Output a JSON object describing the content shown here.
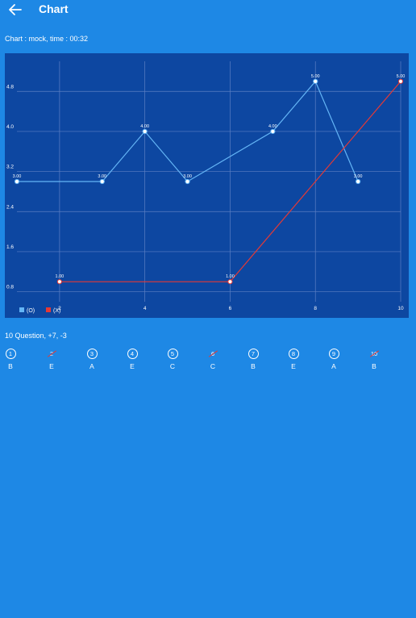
{
  "appbar": {
    "title": "Chart",
    "back_icon": "arrow-left-icon"
  },
  "subtitle": "Chart : mock, time : 00:32",
  "summary": "10 Question, +7, -3",
  "answers": [
    {
      "num": "1",
      "letter": "B",
      "status": "correct"
    },
    {
      "num": "2",
      "letter": "E",
      "status": "wrong"
    },
    {
      "num": "3",
      "letter": "A",
      "status": "correct"
    },
    {
      "num": "4",
      "letter": "E",
      "status": "correct"
    },
    {
      "num": "5",
      "letter": "C",
      "status": "correct"
    },
    {
      "num": "6",
      "letter": "C",
      "status": "wrong"
    },
    {
      "num": "7",
      "letter": "B",
      "status": "correct"
    },
    {
      "num": "8",
      "letter": "E",
      "status": "correct"
    },
    {
      "num": "9",
      "letter": "A",
      "status": "correct"
    },
    {
      "num": "10",
      "letter": "B",
      "status": "wrong"
    }
  ],
  "chart_data": {
    "type": "line",
    "title": "",
    "xlabel": "",
    "ylabel": "",
    "xlim": [
      1,
      10
    ],
    "ylim": [
      0.6,
      5.4
    ],
    "x_ticks": [
      "2",
      "4",
      "6",
      "8",
      "10"
    ],
    "y_ticks": [
      "0.8",
      "1.6",
      "2.4",
      "3.2",
      "4.0",
      "4.8"
    ],
    "grid": true,
    "legend_position": "bottom-left",
    "series": [
      {
        "name": "(O)",
        "color": "#64b5f6",
        "points": [
          [
            1,
            3.0
          ],
          [
            3,
            3.0
          ],
          [
            4,
            4.0
          ],
          [
            5,
            3.0
          ],
          [
            7,
            4.0
          ],
          [
            8,
            5.0
          ],
          [
            9,
            3.0
          ]
        ],
        "labels": [
          "3.00",
          "3.00",
          "4.00",
          "3.00",
          "4.00",
          "5.00",
          "3.00"
        ]
      },
      {
        "name": "(X)",
        "color": "#e53935",
        "points": [
          [
            2,
            1.0
          ],
          [
            6,
            1.0
          ],
          [
            10,
            5.0
          ]
        ],
        "labels": [
          "1.00",
          "1.00",
          "5.00"
        ]
      }
    ]
  }
}
